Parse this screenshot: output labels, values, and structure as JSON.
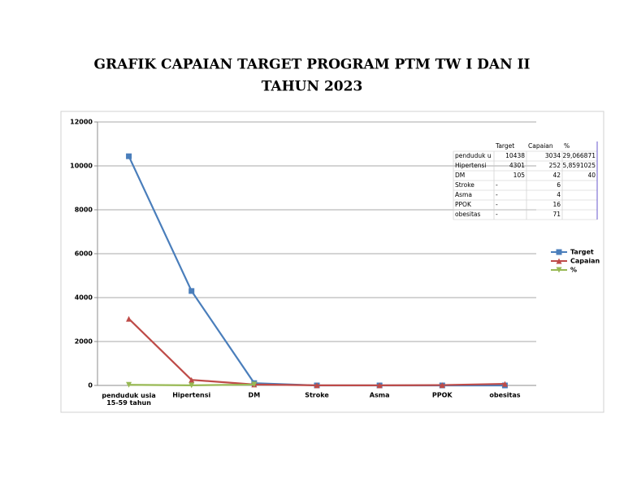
{
  "chart_data": {
    "type": "line",
    "title": "GRAFIK CAPAIAN TARGET PROGRAM PTM TW  I DAN II",
    "subtitle": "TAHUN 2023",
    "categories": [
      "penduduk usia 15-59 tahun",
      "Hipertensi",
      "DM",
      "Stroke",
      "Asma",
      "PPOK",
      "obesitas"
    ],
    "series": [
      {
        "name": "Target",
        "color": "#4a7ebb",
        "marker": "square",
        "values": [
          10438,
          4301,
          105,
          0,
          0,
          0,
          0
        ]
      },
      {
        "name": "Capaian",
        "color": "#be4b48",
        "marker": "triangle",
        "values": [
          3034,
          252,
          42,
          6,
          4,
          16,
          71
        ]
      },
      {
        "name": "%",
        "color": "#98b954",
        "marker": "triangle-down",
        "values": [
          29.066871,
          5.8591025,
          40,
          null,
          null,
          null,
          null
        ]
      }
    ],
    "ylim": [
      0,
      12000
    ],
    "yticks": [
      0,
      2000,
      4000,
      6000,
      8000,
      10000,
      12000
    ],
    "grid": true,
    "legend": "right",
    "table": {
      "header": [
        "Target",
        "Capaian",
        "%"
      ],
      "rows": [
        [
          "penduduk u",
          "10438",
          "3034",
          "29,066871"
        ],
        [
          "Hipertensi",
          "4301",
          "252",
          "5,8591025"
        ],
        [
          "DM",
          "105",
          "42",
          "40"
        ],
        [
          "Stroke",
          "-",
          "6",
          null
        ],
        [
          "Asma",
          "-",
          "4",
          null
        ],
        [
          "PPOK",
          "-",
          "16",
          null
        ],
        [
          "obesitas",
          "-",
          "71",
          null
        ]
      ]
    }
  }
}
